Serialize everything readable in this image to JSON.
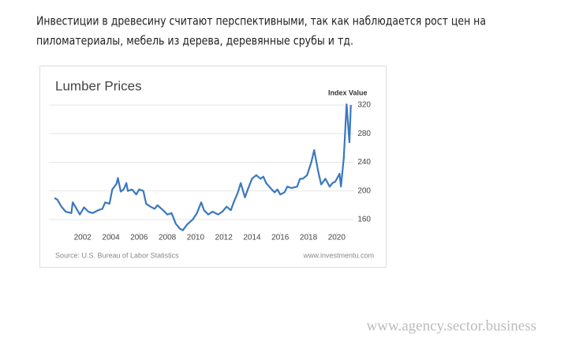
{
  "paragraph_lines": [
    "Инвестиции в древесину считают перспективными, так как наблюдается рост цен на",
    "пиломатериалы, мебель из дерева, деревянные срубы и тд."
  ],
  "chart_data": {
    "type": "line",
    "title": "Lumber Prices",
    "y_label": "Index Value",
    "source": "Source: U.S. Bureau of Labor Statistics",
    "credit": "www.investmentu.com",
    "x": [
      2000,
      2000.2,
      2000.5,
      2000.8,
      2001.2,
      2001.3,
      2001.6,
      2001.8,
      2002.1,
      2002.4,
      2002.7,
      2003.1,
      2003.4,
      2003.6,
      2003.9,
      2004.1,
      2004.4,
      2004.5,
      2004.7,
      2004.9,
      2005.1,
      2005.2,
      2005.5,
      2005.8,
      2006.0,
      2006.3,
      2006.5,
      2006.8,
      2007.1,
      2007.3,
      2007.7,
      2008.0,
      2008.3,
      2008.6,
      2008.9,
      2009.1,
      2009.4,
      2009.8,
      2010.1,
      2010.4,
      2010.6,
      2010.9,
      2011.2,
      2011.6,
      2011.9,
      2012.2,
      2012.5,
      2012.7,
      2013.0,
      2013.2,
      2013.5,
      2013.7,
      2014.0,
      2014.3,
      2014.6,
      2014.8,
      2015.0,
      2015.4,
      2015.6,
      2015.8,
      2016.0,
      2016.3,
      2016.5,
      2016.8,
      2017.2,
      2017.4,
      2017.6,
      2017.9,
      2018.2,
      2018.4,
      2018.7,
      2018.9,
      2019.2,
      2019.5,
      2019.7,
      2019.9,
      2020.2,
      2020.3,
      2020.5,
      2020.7,
      2020.9,
      2021.0
    ],
    "values": [
      190,
      188,
      178,
      171,
      169,
      184,
      174,
      167,
      177,
      171,
      169,
      173,
      175,
      184,
      182,
      202,
      210,
      218,
      199,
      202,
      211,
      200,
      202,
      195,
      202,
      200,
      182,
      178,
      175,
      180,
      173,
      167,
      169,
      154,
      147,
      145,
      153,
      160,
      169,
      184,
      173,
      167,
      171,
      167,
      171,
      178,
      173,
      184,
      198,
      211,
      191,
      202,
      217,
      222,
      217,
      220,
      211,
      202,
      198,
      202,
      195,
      198,
      206,
      204,
      206,
      217,
      217,
      222,
      240,
      257,
      226,
      209,
      217,
      206,
      211,
      213,
      224,
      206,
      246,
      321,
      268,
      320
    ],
    "color": "#3a78bf",
    "xlim": [
      1999.6,
      2021.2
    ],
    "xticks": [
      2002,
      2004,
      2006,
      2008,
      2010,
      2012,
      2014,
      2016,
      2018,
      2020
    ],
    "ylim": [
      142,
      328
    ],
    "yticks": [
      160,
      200,
      240,
      280,
      320
    ],
    "grid": true
  },
  "watermark": "www.agency.sector.business"
}
